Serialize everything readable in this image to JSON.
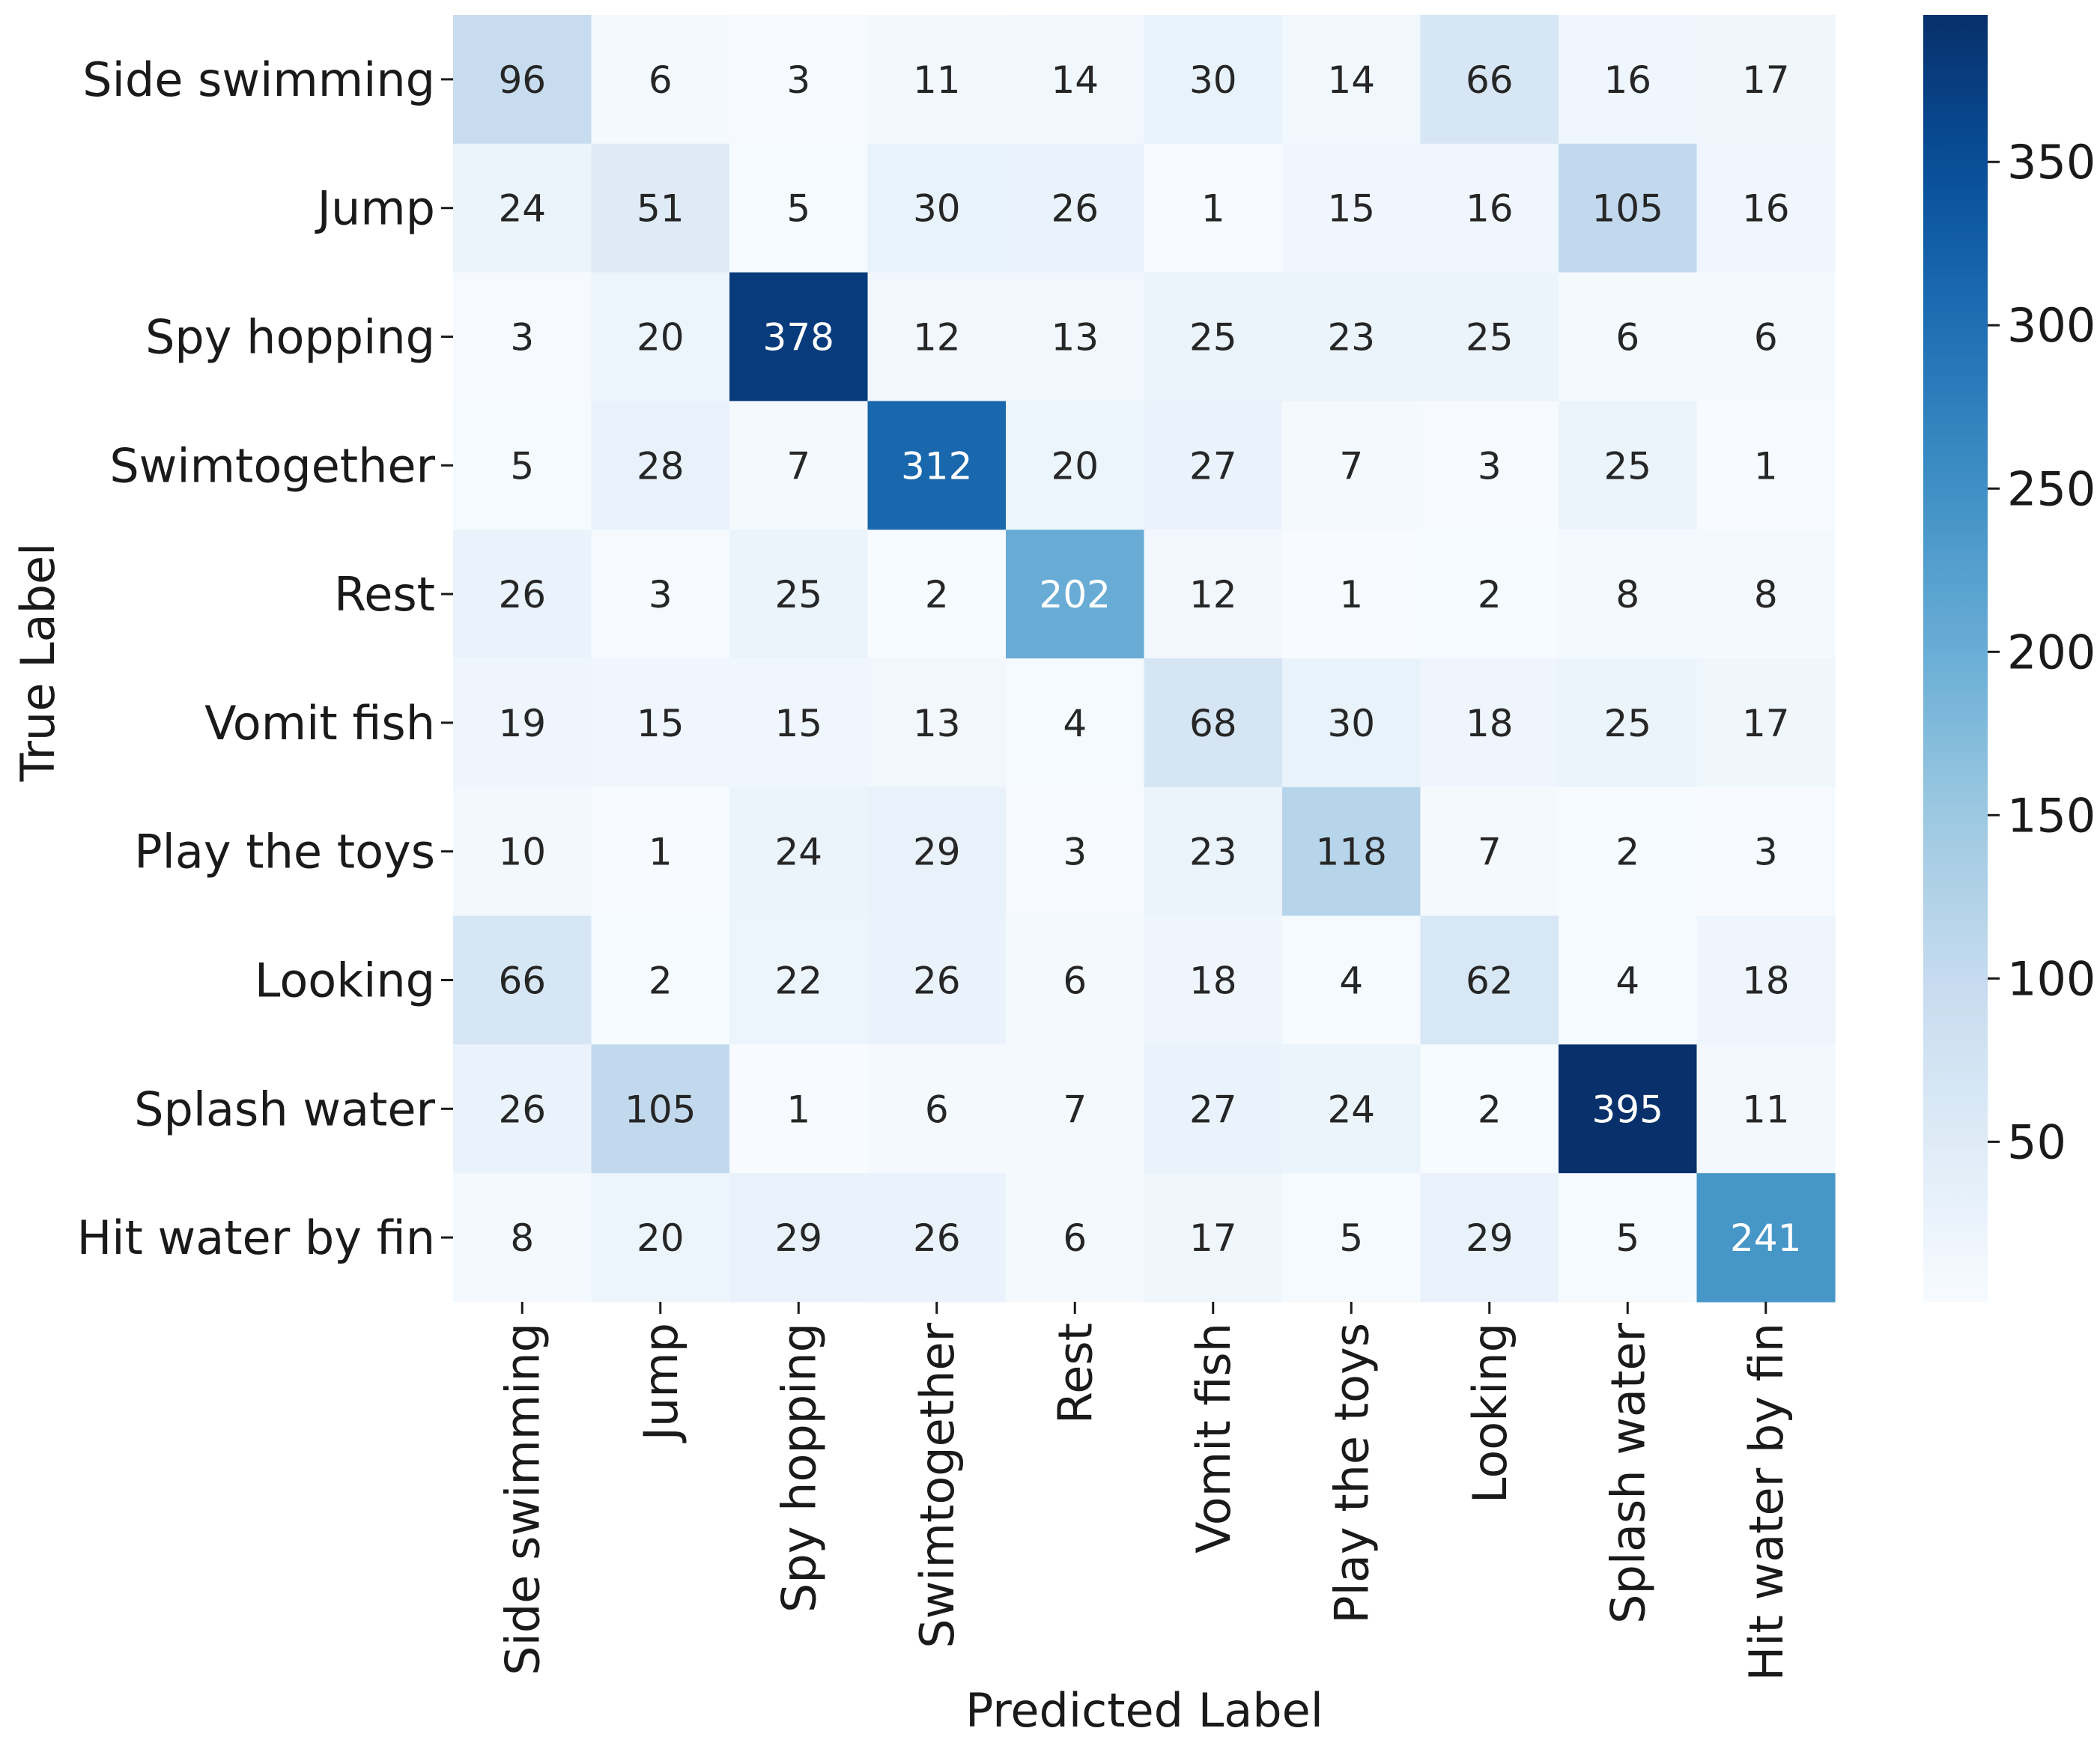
{
  "chart_data": {
    "type": "heatmap",
    "title": "",
    "xlabel": "Predicted Label",
    "ylabel": "True Label",
    "x_categories": [
      "Side swimming",
      "Jump",
      "Spy hopping",
      "Swimtogether",
      "Rest",
      "Vomit fish",
      "Play the toys",
      "Looking",
      "Splash water",
      "Hit water by fin"
    ],
    "y_categories": [
      "Side swimming",
      "Jump",
      "Spy hopping",
      "Swimtogether",
      "Rest",
      "Vomit fish",
      "Play the toys",
      "Looking",
      "Splash water",
      "Hit water by fin"
    ],
    "values": [
      [
        96,
        6,
        3,
        11,
        14,
        30,
        14,
        66,
        16,
        17
      ],
      [
        24,
        51,
        5,
        30,
        26,
        1,
        15,
        16,
        105,
        16
      ],
      [
        3,
        20,
        378,
        12,
        13,
        25,
        23,
        25,
        6,
        6
      ],
      [
        5,
        28,
        7,
        312,
        20,
        27,
        7,
        3,
        25,
        1
      ],
      [
        26,
        3,
        25,
        2,
        202,
        12,
        1,
        2,
        8,
        8
      ],
      [
        19,
        15,
        15,
        13,
        4,
        68,
        30,
        18,
        25,
        17
      ],
      [
        10,
        1,
        24,
        29,
        3,
        23,
        118,
        7,
        2,
        3
      ],
      [
        66,
        2,
        22,
        26,
        6,
        18,
        4,
        62,
        4,
        18
      ],
      [
        26,
        105,
        1,
        6,
        7,
        27,
        24,
        2,
        395,
        11
      ],
      [
        8,
        20,
        29,
        26,
        6,
        17,
        5,
        29,
        5,
        241
      ]
    ],
    "colorbar": {
      "colormap": "Blues",
      "range": [
        1,
        395
      ],
      "ticks": [
        50,
        100,
        150,
        200,
        250,
        300,
        350
      ]
    },
    "grid": false
  }
}
